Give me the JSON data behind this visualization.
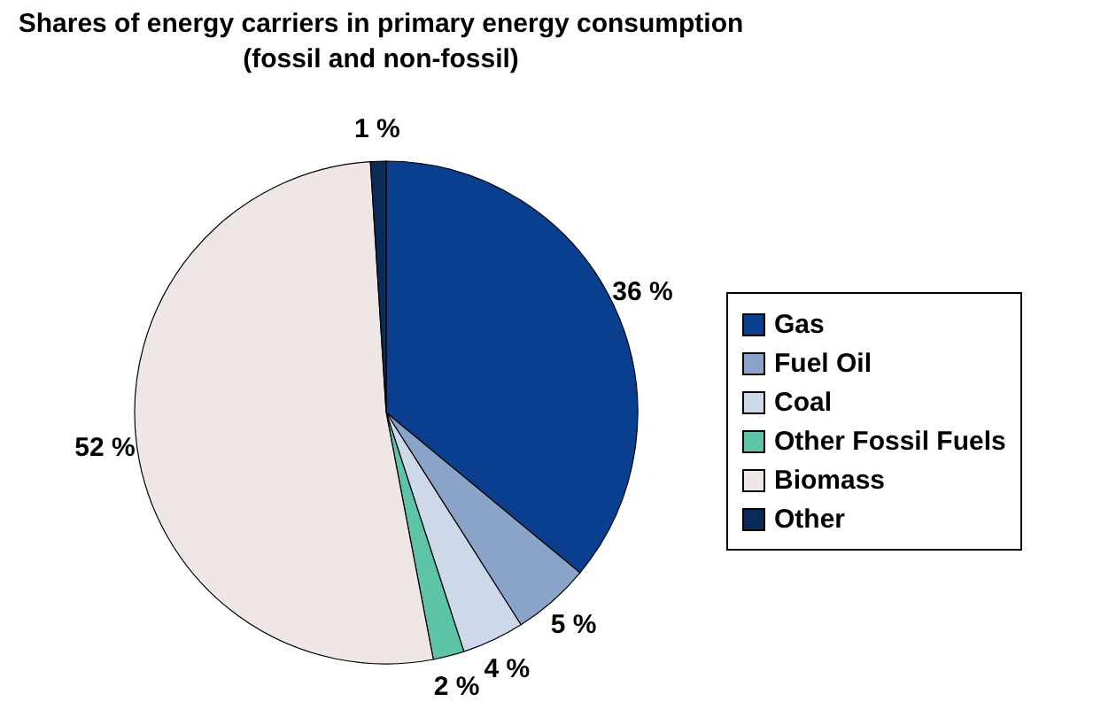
{
  "chart_data": {
    "type": "pie",
    "title": "Shares of energy carriers in primary energy consumption (fossil and non-fossil)",
    "categories": [
      "Gas",
      "Fuel Oil",
      "Coal",
      "Other Fossil Fuels",
      "Biomass",
      "Other"
    ],
    "values": [
      36,
      5,
      4,
      2,
      52,
      1
    ],
    "value_labels": [
      "36 %",
      "5 %",
      "4 %",
      "2 %",
      "52 %",
      "1 %"
    ],
    "colors": [
      "#0a3f8f",
      "#8aa3c8",
      "#cdd8ea",
      "#5ec4a8",
      "#efe6e6",
      "#0a2a5a"
    ],
    "legend": "right"
  }
}
